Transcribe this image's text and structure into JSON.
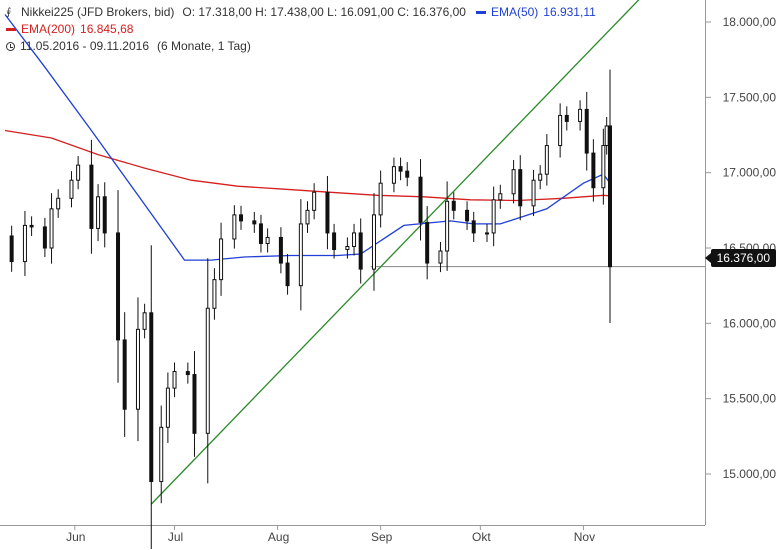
{
  "legend": {
    "instrument": "Nikkei225 (JFD Brokers, bid)",
    "ohlc": "O: 17.318,00  H: 17.438,00  L: 16.091,00  C: 16.376,00",
    "ema50_label": "EMA(50)",
    "ema50_value": "16.931,11",
    "ema200_label": "EMA(200)",
    "ema200_value": "16.845,68",
    "range": "11.05.2016 - 09.11.2016",
    "period": "(6 Monate, 1 Tag)"
  },
  "colors": {
    "ema50": "#1f3fd6",
    "ema200": "#d61f1f",
    "trendline": "#2a8a2a",
    "candle": "#111111",
    "support_line": "#888888"
  },
  "chart_data": {
    "type": "candlestick",
    "y_ticks": [
      "18.000,00",
      "17.500,00",
      "17.000,00",
      "16.500,00",
      "16.000,00",
      "15.500,00",
      "15.000,00"
    ],
    "y_tick_values": [
      18000,
      17500,
      17000,
      16500,
      16000,
      15500,
      15000
    ],
    "x_ticks": [
      "Jun",
      "Jul",
      "Aug",
      "Sep",
      "Okt",
      "Nov"
    ],
    "x_tick_dates": [
      "2016-06-01",
      "2016-07-01",
      "2016-08-01",
      "2016-09-01",
      "2016-10-01",
      "2016-11-01"
    ],
    "x_range": [
      "2016-05-11",
      "2016-11-09"
    ],
    "ylim": [
      14700,
      18150
    ],
    "last_price_label": "16.376,00",
    "last_price": 16376,
    "support_level": 16376,
    "support_start": "2016-08-29",
    "trendline": {
      "points": [
        [
          "2016-06-24",
          14800
        ],
        [
          "2016-11-09",
          17950
        ]
      ]
    },
    "close_series": [
      [
        "2016-05-11",
        16580
      ],
      [
        "2016-05-13",
        16410
      ],
      [
        "2016-05-17",
        16650
      ],
      [
        "2016-05-19",
        16640
      ],
      [
        "2016-05-23",
        16500
      ],
      [
        "2016-05-25",
        16760
      ],
      [
        "2016-05-27",
        16830
      ],
      [
        "2016-05-31",
        16950
      ],
      [
        "2016-06-02",
        17050
      ],
      [
        "2016-06-06",
        16630
      ],
      [
        "2016-06-08",
        16840
      ],
      [
        "2016-06-10",
        16600
      ],
      [
        "2016-06-14",
        15890
      ],
      [
        "2016-06-16",
        15430
      ],
      [
        "2016-06-20",
        15960
      ],
      [
        "2016-06-22",
        16070
      ],
      [
        "2016-06-24",
        14950
      ],
      [
        "2016-06-27",
        15310
      ],
      [
        "2016-06-29",
        15570
      ],
      [
        "2016-07-01",
        15680
      ],
      [
        "2016-07-05",
        15660
      ],
      [
        "2016-07-07",
        15270
      ],
      [
        "2016-07-11",
        16100
      ],
      [
        "2016-07-13",
        16290
      ],
      [
        "2016-07-15",
        16560
      ],
      [
        "2016-07-19",
        16720
      ],
      [
        "2016-07-21",
        16680
      ],
      [
        "2016-07-25",
        16660
      ],
      [
        "2016-07-27",
        16530
      ],
      [
        "2016-07-29",
        16570
      ],
      [
        "2016-08-02",
        16400
      ],
      [
        "2016-08-04",
        16250
      ],
      [
        "2016-08-08",
        16660
      ],
      [
        "2016-08-10",
        16750
      ],
      [
        "2016-08-12",
        16870
      ],
      [
        "2016-08-16",
        16600
      ],
      [
        "2016-08-18",
        16490
      ],
      [
        "2016-08-22",
        16510
      ],
      [
        "2016-08-24",
        16600
      ],
      [
        "2016-08-26",
        16360
      ],
      [
        "2016-08-30",
        16720
      ],
      [
        "2016-09-01",
        16930
      ],
      [
        "2016-09-05",
        17040
      ],
      [
        "2016-09-07",
        17010
      ],
      [
        "2016-09-09",
        16970
      ],
      [
        "2016-09-13",
        16670
      ],
      [
        "2016-09-15",
        16400
      ],
      [
        "2016-09-19",
        16480
      ],
      [
        "2016-09-21",
        16810
      ],
      [
        "2016-09-23",
        16750
      ],
      [
        "2016-09-27",
        16680
      ],
      [
        "2016-09-29",
        16600
      ],
      [
        "2016-10-03",
        16600
      ],
      [
        "2016-10-05",
        16820
      ],
      [
        "2016-10-07",
        16860
      ],
      [
        "2016-10-11",
        17020
      ],
      [
        "2016-10-13",
        16780
      ],
      [
        "2016-10-17",
        16950
      ],
      [
        "2016-10-19",
        16990
      ],
      [
        "2016-10-21",
        17180
      ],
      [
        "2016-10-25",
        17380
      ],
      [
        "2016-10-27",
        17340
      ],
      [
        "2016-10-31",
        17420
      ],
      [
        "2016-11-02",
        17130
      ],
      [
        "2016-11-04",
        16900
      ],
      [
        "2016-11-07",
        17180
      ],
      [
        "2016-11-08",
        17310
      ],
      [
        "2016-11-09",
        16376
      ]
    ],
    "ema50_series": [
      [
        "2016-05-11",
        18050
      ],
      [
        "2016-05-23",
        17700
      ],
      [
        "2016-06-06",
        17280
      ],
      [
        "2016-06-20",
        16850
      ],
      [
        "2016-07-04",
        16420
      ],
      [
        "2016-07-12",
        16420
      ],
      [
        "2016-07-22",
        16440
      ],
      [
        "2016-08-05",
        16450
      ],
      [
        "2016-08-19",
        16450
      ],
      [
        "2016-08-26",
        16460
      ],
      [
        "2016-09-08",
        16650
      ],
      [
        "2016-09-22",
        16680
      ],
      [
        "2016-09-29",
        16660
      ],
      [
        "2016-10-07",
        16660
      ],
      [
        "2016-10-21",
        16760
      ],
      [
        "2016-11-01",
        16930
      ],
      [
        "2016-11-07",
        16990
      ],
      [
        "2016-11-09",
        16931
      ]
    ],
    "ema200_series": [
      [
        "2016-05-11",
        17280
      ],
      [
        "2016-05-25",
        17230
      ],
      [
        "2016-06-08",
        17120
      ],
      [
        "2016-06-22",
        17030
      ],
      [
        "2016-07-06",
        16950
      ],
      [
        "2016-07-20",
        16910
      ],
      [
        "2016-08-03",
        16890
      ],
      [
        "2016-08-17",
        16870
      ],
      [
        "2016-08-31",
        16850
      ],
      [
        "2016-09-14",
        16840
      ],
      [
        "2016-09-28",
        16820
      ],
      [
        "2016-10-12",
        16815
      ],
      [
        "2016-10-26",
        16830
      ],
      [
        "2016-11-07",
        16850
      ],
      [
        "2016-11-09",
        16846
      ]
    ]
  }
}
